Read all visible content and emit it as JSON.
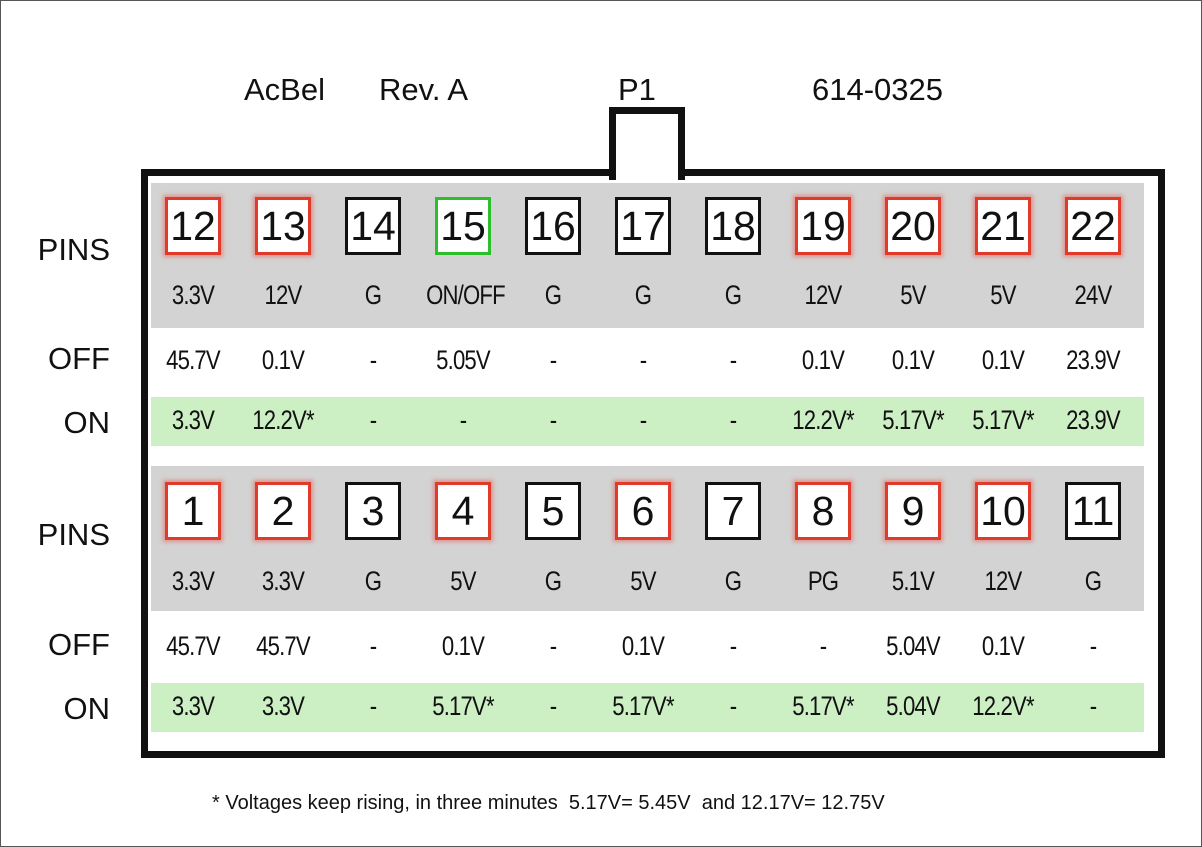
{
  "header": {
    "brand": "AcBel",
    "revision": "Rev. A",
    "connector": "P1",
    "part_number": "614-0325"
  },
  "labels": {
    "pins": "PINS",
    "off": "OFF",
    "on": "ON"
  },
  "colors": {
    "red": "#e03a2a",
    "green": "#2bbf2b",
    "black": "#111111",
    "gray_band": "#d3d3d3",
    "green_band": "#ccf0c4"
  },
  "top_row": [
    {
      "pin": "12",
      "color": "red",
      "signal": "3.3V",
      "off": "45.7V",
      "on": "3.3V"
    },
    {
      "pin": "13",
      "color": "red",
      "signal": "12V",
      "off": "0.1V",
      "on": "12.2V*"
    },
    {
      "pin": "14",
      "color": "black",
      "signal": "G",
      "off": "-",
      "on": "-"
    },
    {
      "pin": "15",
      "color": "green",
      "signal": "ON/OFF",
      "off": "5.05V",
      "on": "-"
    },
    {
      "pin": "16",
      "color": "black",
      "signal": "G",
      "off": "-",
      "on": "-"
    },
    {
      "pin": "17",
      "color": "black",
      "signal": "G",
      "off": "-",
      "on": "-"
    },
    {
      "pin": "18",
      "color": "black",
      "signal": "G",
      "off": "-",
      "on": "-"
    },
    {
      "pin": "19",
      "color": "red",
      "signal": "12V",
      "off": "0.1V",
      "on": "12.2V*"
    },
    {
      "pin": "20",
      "color": "red",
      "signal": "5V",
      "off": "0.1V",
      "on": "5.17V*"
    },
    {
      "pin": "21",
      "color": "red",
      "signal": "5V",
      "off": "0.1V",
      "on": "5.17V*"
    },
    {
      "pin": "22",
      "color": "red",
      "signal": "24V",
      "off": "23.9V",
      "on": "23.9V"
    }
  ],
  "bottom_row": [
    {
      "pin": "1",
      "color": "red",
      "signal": "3.3V",
      "off": "45.7V",
      "on": "3.3V"
    },
    {
      "pin": "2",
      "color": "red",
      "signal": "3.3V",
      "off": "45.7V",
      "on": "3.3V"
    },
    {
      "pin": "3",
      "color": "black",
      "signal": "G",
      "off": "-",
      "on": "-"
    },
    {
      "pin": "4",
      "color": "red",
      "signal": "5V",
      "off": "0.1V",
      "on": "5.17V*"
    },
    {
      "pin": "5",
      "color": "black",
      "signal": "G",
      "off": "-",
      "on": "-"
    },
    {
      "pin": "6",
      "color": "red",
      "signal": "5V",
      "off": "0.1V",
      "on": "5.17V*"
    },
    {
      "pin": "7",
      "color": "black",
      "signal": "G",
      "off": "-",
      "on": "-"
    },
    {
      "pin": "8",
      "color": "red",
      "signal": "PG",
      "off": "-",
      "on": "5.17V*"
    },
    {
      "pin": "9",
      "color": "red",
      "signal": "5.1V",
      "off": "5.04V",
      "on": "5.04V"
    },
    {
      "pin": "10",
      "color": "red",
      "signal": "12V",
      "off": "0.1V",
      "on": "12.2V*"
    },
    {
      "pin": "11",
      "color": "black",
      "signal": "G",
      "off": "-",
      "on": "-"
    }
  ],
  "footnote": "* Voltages keep rising, in three minutes  5.17V= 5.45V  and 12.17V= 12.75V"
}
